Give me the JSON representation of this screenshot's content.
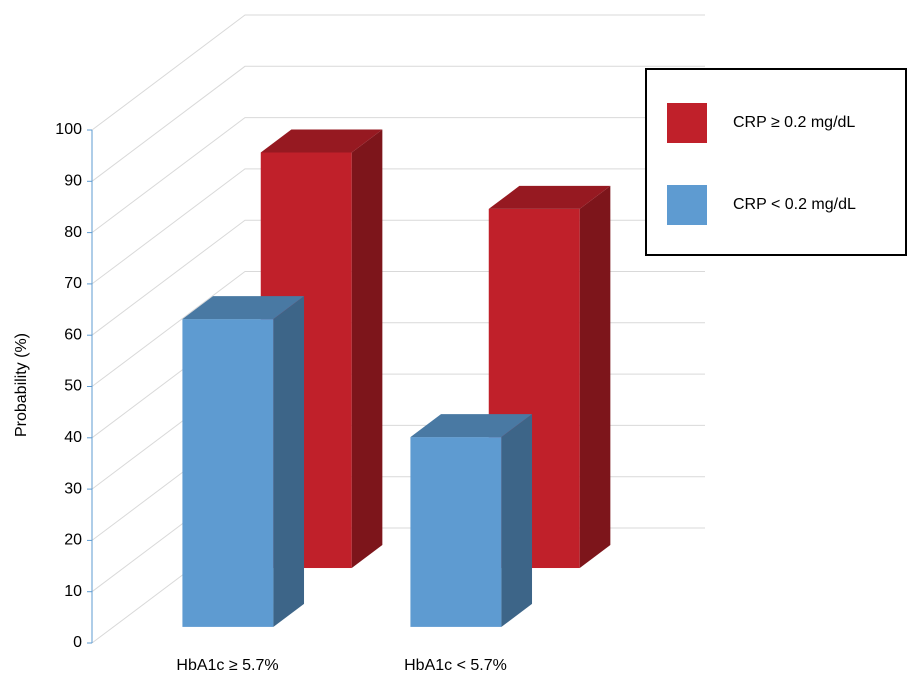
{
  "chart_data": {
    "type": "bar3d",
    "y_label": "Probability (%)",
    "categories": [
      "HbA1c ≥ 5.7%",
      "HbA1c < 5.7%"
    ],
    "series": [
      {
        "name": "CRP ≥ 0.2 mg/dL",
        "color": "#c0202a",
        "values": [
          81,
          70
        ]
      },
      {
        "name": "CRP < 0.2 mg/dL",
        "color": "#5e9bd1",
        "values": [
          60,
          37
        ]
      }
    ],
    "ylim": [
      0,
      100
    ],
    "yticks": [
      0,
      10,
      20,
      30,
      40,
      50,
      60,
      70,
      80,
      90,
      100
    ],
    "grid": true,
    "legend": "upper right"
  }
}
